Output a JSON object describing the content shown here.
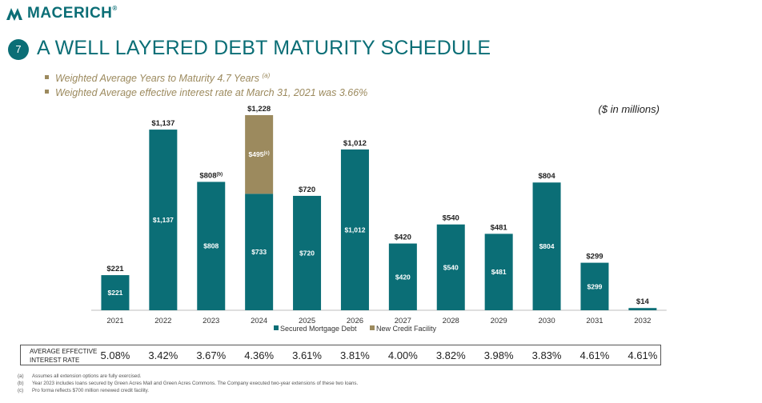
{
  "logo": {
    "text": "MACERICH",
    "mark": "®"
  },
  "page_number": "7",
  "title": "A WELL LAYERED DEBT MATURITY SCHEDULE",
  "bullets": [
    {
      "text": "Weighted Average Years to Maturity 4.7 Years",
      "note": "(a)"
    },
    {
      "text": "Weighted Average effective interest rate at March 31, 2021 was 3.66%",
      "note": ""
    }
  ],
  "units_note": "($ in millions)",
  "chart_data": {
    "type": "bar",
    "stacked": true,
    "categories": [
      "2021",
      "2022",
      "2023",
      "2024",
      "2025",
      "2026",
      "2027",
      "2028",
      "2029",
      "2030",
      "2031",
      "2032"
    ],
    "series": [
      {
        "name": "Secured Mortgage Debt",
        "color": "#0b6e76",
        "values": [
          221,
          1137,
          808,
          733,
          720,
          1012,
          420,
          540,
          481,
          804,
          299,
          14
        ],
        "labels": [
          "$221",
          "$1,137",
          "$808",
          "$733",
          "$720",
          "$1,012",
          "$420",
          "$540",
          "$481",
          "$804",
          "$299",
          ""
        ]
      },
      {
        "name": "New Credit Facility",
        "color": "#9c8a5e",
        "values": [
          0,
          0,
          0,
          495,
          0,
          0,
          0,
          0,
          0,
          0,
          0,
          0
        ],
        "labels": [
          "",
          "",
          "",
          "$495",
          "",
          "",
          "",
          "",
          "",
          "",
          "",
          ""
        ],
        "label_notes": [
          "",
          "",
          "",
          "(c)",
          "",
          "",
          "",
          "",
          "",
          "",
          "",
          ""
        ]
      }
    ],
    "totals": [
      "$221",
      "$1,137",
      "$808",
      "$1,228",
      "$720",
      "$1,012",
      "$420",
      "$540",
      "$481",
      "$804",
      "$299",
      "$14"
    ],
    "total_notes": [
      "",
      "",
      "(b)",
      "",
      "",
      "",
      "",
      "",
      "",
      "",
      "",
      ""
    ],
    "ylim": [
      0,
      1228
    ],
    "legend": "bottom-center"
  },
  "rate_table": {
    "label": "AVERAGE EFFECTIVE INTEREST RATE",
    "values": [
      "5.08%",
      "3.42%",
      "3.67%",
      "4.36%",
      "3.61%",
      "3.81%",
      "4.00%",
      "3.82%",
      "3.98%",
      "3.83%",
      "4.61%",
      "4.61%"
    ]
  },
  "footnotes": [
    {
      "mark": "(a)",
      "text": "Assumes all extension options are fully exercised."
    },
    {
      "mark": "(b)",
      "text": "Year 2023 includes loans secured by Green Acres Mall and Green Acres Commons. The Company executed two-year extensions of these two loans."
    },
    {
      "mark": "(c)",
      "text": "Pro forma reflects $700 million renewed credit facility."
    }
  ]
}
